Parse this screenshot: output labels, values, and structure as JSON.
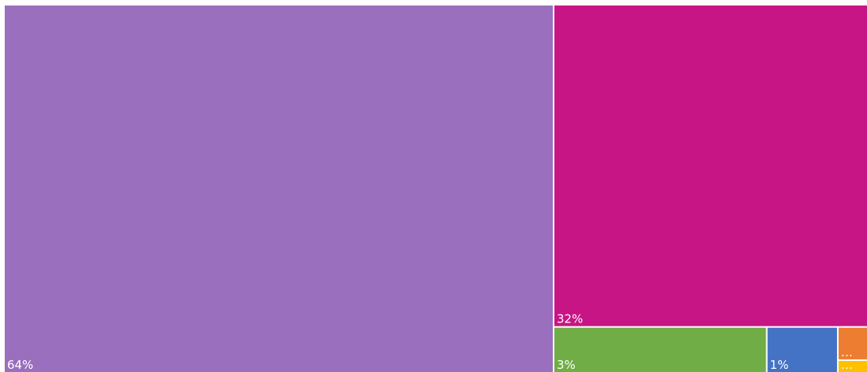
{
  "chart_data": {
    "type": "treemap",
    "values": [
      64,
      32,
      3,
      1,
      0.3,
      0.1
    ],
    "value_labels": [
      "64%",
      "32%",
      "3%",
      "1%",
      "…",
      "…"
    ],
    "colors": [
      "#9a6fbd",
      "#c71585",
      "#70ad47",
      "#4472c4",
      "#ed7d31",
      "#ffc000"
    ]
  }
}
